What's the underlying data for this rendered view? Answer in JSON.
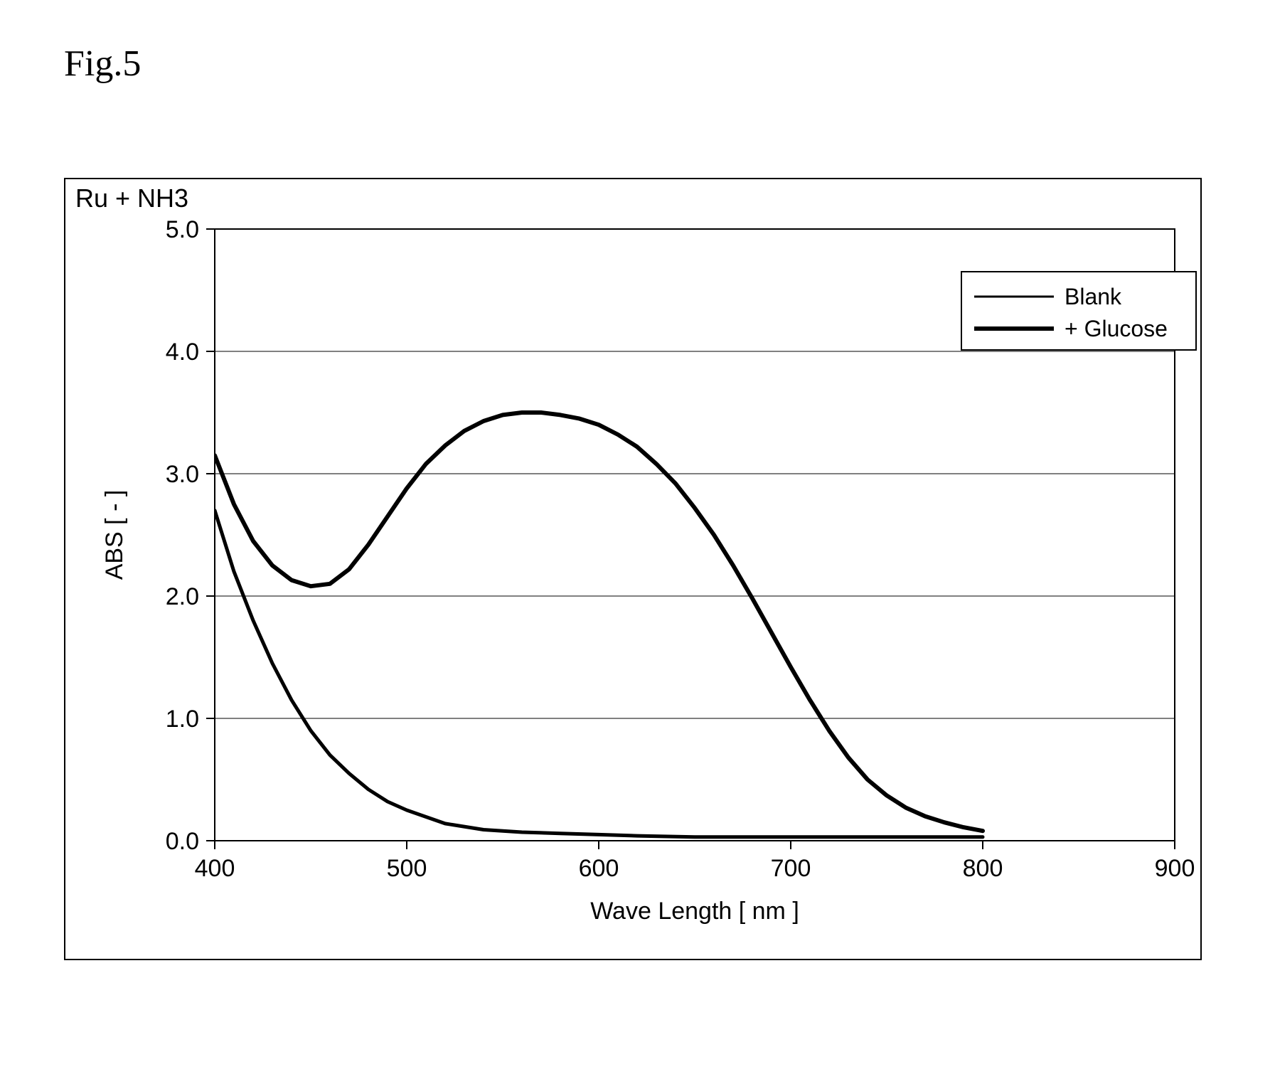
{
  "figure_label": "Fig.5",
  "panel_title": "Ru + NH3",
  "chart": {
    "type": "line",
    "background_color": "#ffffff",
    "axis_color": "#000000",
    "grid_color": "#000000",
    "grid_line_width": 1,
    "axis_line_width": 2,
    "xlabel": "Wave Length  [ nm ]",
    "ylabel": "ABS [ - ]",
    "label_fontsize": 34,
    "tick_fontsize": 34,
    "xlim": [
      400,
      900
    ],
    "ylim": [
      0.0,
      5.0
    ],
    "xtick_step": 100,
    "ytick_step": 1.0,
    "xtick_labels": [
      "400",
      "500",
      "600",
      "700",
      "800",
      "900"
    ],
    "ytick_labels": [
      "0.0",
      "1.0",
      "2.0",
      "3.0",
      "4.0",
      "5.0"
    ],
    "series": [
      {
        "name": "Blank",
        "color": "#000000",
        "line_width": 5,
        "x": [
          400,
          410,
          420,
          430,
          440,
          450,
          460,
          470,
          480,
          490,
          500,
          520,
          540,
          560,
          580,
          600,
          620,
          650,
          700,
          750,
          800
        ],
        "y": [
          2.7,
          2.2,
          1.8,
          1.45,
          1.15,
          0.9,
          0.7,
          0.55,
          0.42,
          0.32,
          0.25,
          0.14,
          0.09,
          0.07,
          0.06,
          0.05,
          0.04,
          0.03,
          0.03,
          0.03,
          0.03
        ]
      },
      {
        "name": "+ Glucose",
        "color": "#000000",
        "line_width": 6,
        "x": [
          400,
          410,
          420,
          430,
          440,
          450,
          460,
          470,
          480,
          490,
          500,
          510,
          520,
          530,
          540,
          550,
          560,
          570,
          580,
          590,
          600,
          610,
          620,
          630,
          640,
          650,
          660,
          670,
          680,
          690,
          700,
          710,
          720,
          730,
          740,
          750,
          760,
          770,
          780,
          790,
          800
        ],
        "y": [
          3.15,
          2.75,
          2.45,
          2.25,
          2.13,
          2.08,
          2.1,
          2.22,
          2.42,
          2.65,
          2.88,
          3.08,
          3.23,
          3.35,
          3.43,
          3.48,
          3.5,
          3.5,
          3.48,
          3.45,
          3.4,
          3.32,
          3.22,
          3.08,
          2.92,
          2.72,
          2.5,
          2.25,
          1.98,
          1.7,
          1.42,
          1.15,
          0.9,
          0.68,
          0.5,
          0.37,
          0.27,
          0.2,
          0.15,
          0.11,
          0.08
        ]
      }
    ],
    "legend": {
      "position": "top-right",
      "border_color": "#000000",
      "background_color": "#ffffff",
      "items": [
        {
          "label": "Blank",
          "line_width": 3,
          "color": "#000000"
        },
        {
          "label": "+ Glucose",
          "line_width": 6,
          "color": "#000000"
        }
      ]
    }
  }
}
